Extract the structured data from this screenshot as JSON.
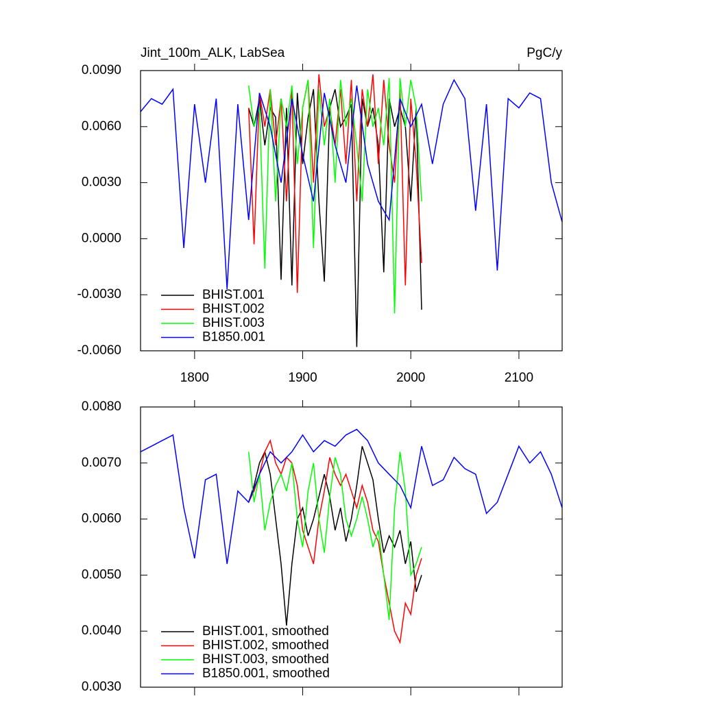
{
  "chart_data": [
    {
      "type": "line",
      "title": "Jint_100m_ALK, LabSea",
      "units": "PgC/y",
      "xlim": [
        1750,
        2140
      ],
      "xticks": [
        1800,
        1900,
        2000,
        2100
      ],
      "ylim": [
        -0.006,
        0.009
      ],
      "yticks": [
        {
          "value": -0.006,
          "label": "-0.0060"
        },
        {
          "value": -0.003,
          "label": "-0.0030"
        },
        {
          "value": 0,
          "label": "0.0000"
        },
        {
          "value": 0.003,
          "label": "0.0030"
        },
        {
          "value": 0.006,
          "label": "0.0060"
        },
        {
          "value": 0.009,
          "label": "0.0090"
        }
      ],
      "legend": "lower left",
      "series": [
        {
          "name": "BHIST.001",
          "color": "#000000",
          "x": [
            1850,
            1855,
            1860,
            1865,
            1870,
            1875,
            1880,
            1885,
            1890,
            1895,
            1900,
            1905,
            1910,
            1915,
            1920,
            1925,
            1930,
            1935,
            1940,
            1945,
            1950,
            1955,
            1960,
            1965,
            1970,
            1975,
            1980,
            1985,
            1990,
            1995,
            2000,
            2005,
            2010
          ],
          "values": [
            0.007,
            0.006,
            0.0075,
            0.005,
            0.007,
            0.0065,
            -0.0022,
            0.007,
            -0.0025,
            0.0078,
            0.004,
            0.0065,
            0.008,
            0.002,
            -0.0023,
            0.007,
            0.008,
            0.006,
            0.0065,
            0.0072,
            -0.0058,
            0.0075,
            0.006,
            0.007,
            0.005,
            -0.0018,
            0.0075,
            0.006,
            0.007,
            0.006,
            0.002,
            0.007,
            -0.0038
          ]
        },
        {
          "name": "BHIST.002",
          "color": "#ff0000",
          "x": [
            1850,
            1855,
            1860,
            1865,
            1870,
            1875,
            1880,
            1885,
            1890,
            1895,
            1900,
            1905,
            1910,
            1915,
            1920,
            1925,
            1930,
            1935,
            1940,
            1945,
            1950,
            1955,
            1960,
            1965,
            1970,
            1975,
            1980,
            1985,
            1990,
            1995,
            2000,
            2005,
            2010
          ],
          "values": [
            0.007,
            -0.0003,
            0.0078,
            0.006,
            0.008,
            0.005,
            0.0075,
            0.002,
            0.008,
            -0.0029,
            0.007,
            0.0085,
            0.003,
            0.0088,
            0.006,
            0.007,
            0.005,
            0.008,
            0.004,
            0.0085,
            0.002,
            0.008,
            0.006,
            0.0088,
            0.004,
            0.0085,
            0.005,
            0.003,
            0.008,
            -0.0025,
            0.0075,
            0.004,
            -0.0013
          ]
        },
        {
          "name": "BHIST.003",
          "color": "#00ff00",
          "x": [
            1850,
            1855,
            1860,
            1865,
            1870,
            1875,
            1880,
            1885,
            1890,
            1895,
            1900,
            1905,
            1910,
            1915,
            1920,
            1925,
            1930,
            1935,
            1940,
            1945,
            1950,
            1955,
            1960,
            1965,
            1970,
            1975,
            1980,
            1985,
            1990,
            1995,
            2000,
            2005,
            2010
          ],
          "values": [
            0.0082,
            0.006,
            0.007,
            -0.0016,
            0.008,
            0.002,
            0.0075,
            0.006,
            0.0082,
            0.004,
            0.007,
            0.0085,
            -0.0005,
            0.008,
            0.005,
            0.0075,
            0.003,
            0.0085,
            0.006,
            0.0075,
            0.005,
            0.002,
            0.008,
            0.006,
            0.007,
            0.005,
            0.0086,
            -0.004,
            0.0086,
            0.006,
            0.0085,
            0.007,
            0.002
          ]
        },
        {
          "name": "B1850.001",
          "color": "#0000ff",
          "x": [
            1750,
            1760,
            1770,
            1780,
            1790,
            1800,
            1810,
            1820,
            1830,
            1840,
            1850,
            1860,
            1870,
            1880,
            1890,
            1900,
            1910,
            1920,
            1930,
            1940,
            1950,
            1960,
            1970,
            1980,
            1990,
            2000,
            2010,
            2020,
            2030,
            2040,
            2050,
            2060,
            2070,
            2080,
            2090,
            2100,
            2110,
            2120,
            2130,
            2140
          ],
          "values": [
            0.0068,
            0.0075,
            0.0072,
            0.008,
            -0.0005,
            0.0072,
            0.003,
            0.0075,
            -0.0027,
            0.0072,
            0.001,
            0.0078,
            0.006,
            0.003,
            0.0075,
            0.0045,
            0.002,
            0.0078,
            0.005,
            0.003,
            0.0082,
            0.004,
            0.002,
            0.001,
            0.0075,
            0.006,
            0.0072,
            0.004,
            0.0072,
            0.0085,
            0.0075,
            0.0015,
            0.0072,
            -0.0017,
            0.0075,
            0.007,
            0.0078,
            0.0075,
            0.003,
            0.0009
          ]
        }
      ]
    },
    {
      "type": "line",
      "xlim": [
        1750,
        2140
      ],
      "xticks": [
        1800,
        1900,
        2000,
        2100
      ],
      "ylim": [
        0.003,
        0.008
      ],
      "yticks": [
        {
          "value": 0.003,
          "label": "0.0030"
        },
        {
          "value": 0.004,
          "label": "0.0040"
        },
        {
          "value": 0.005,
          "label": "0.0050"
        },
        {
          "value": 0.006,
          "label": "0.0060"
        },
        {
          "value": 0.007,
          "label": "0.0070"
        },
        {
          "value": 0.008,
          "label": "0.0080"
        }
      ],
      "legend": "lower left",
      "series": [
        {
          "name": "BHIST.001, smoothed",
          "color": "#000000",
          "x": [
            1850,
            1855,
            1860,
            1865,
            1870,
            1875,
            1880,
            1885,
            1890,
            1895,
            1900,
            1905,
            1910,
            1915,
            1920,
            1925,
            1930,
            1935,
            1940,
            1945,
            1950,
            1955,
            1960,
            1965,
            1970,
            1975,
            1980,
            1985,
            1990,
            1995,
            2000,
            2005,
            2010
          ],
          "values": [
            0.0063,
            0.0066,
            0.007,
            0.0072,
            0.0068,
            0.006,
            0.0052,
            0.0041,
            0.0052,
            0.006,
            0.0062,
            0.0057,
            0.006,
            0.0064,
            0.0068,
            0.0064,
            0.0058,
            0.0062,
            0.0056,
            0.006,
            0.0066,
            0.0073,
            0.007,
            0.0067,
            0.006,
            0.0054,
            0.0057,
            0.0055,
            0.0058,
            0.0052,
            0.0056,
            0.0047,
            0.005
          ]
        },
        {
          "name": "BHIST.002, smoothed",
          "color": "#ff0000",
          "x": [
            1850,
            1855,
            1860,
            1865,
            1870,
            1875,
            1880,
            1885,
            1890,
            1895,
            1900,
            1905,
            1910,
            1915,
            1920,
            1925,
            1930,
            1935,
            1940,
            1945,
            1950,
            1955,
            1960,
            1965,
            1970,
            1975,
            1980,
            1985,
            1990,
            1995,
            2000,
            2005,
            2010
          ],
          "values": [
            0.0063,
            0.0065,
            0.0068,
            0.0072,
            0.0074,
            0.007,
            0.0068,
            0.0071,
            0.007,
            0.0066,
            0.0058,
            0.0055,
            0.0052,
            0.006,
            0.0065,
            0.0071,
            0.0068,
            0.0066,
            0.0068,
            0.0065,
            0.0062,
            0.0066,
            0.0063,
            0.0058,
            0.0056,
            0.005,
            0.0045,
            0.004,
            0.0038,
            0.0045,
            0.0043,
            0.005,
            0.0053
          ]
        },
        {
          "name": "BHIST.003, smoothed",
          "color": "#00ff00",
          "x": [
            1850,
            1855,
            1860,
            1865,
            1870,
            1875,
            1880,
            1885,
            1890,
            1895,
            1900,
            1905,
            1910,
            1915,
            1920,
            1925,
            1930,
            1935,
            1940,
            1945,
            1950,
            1955,
            1960,
            1965,
            1970,
            1975,
            1980,
            1985,
            1990,
            1995,
            2000,
            2005,
            2010
          ],
          "values": [
            0.0072,
            0.0063,
            0.0068,
            0.0058,
            0.0063,
            0.0066,
            0.0068,
            0.0065,
            0.007,
            0.006,
            0.0055,
            0.0065,
            0.007,
            0.006,
            0.0054,
            0.0064,
            0.0071,
            0.0068,
            0.006,
            0.0057,
            0.006,
            0.0064,
            0.006,
            0.0055,
            0.0058,
            0.005,
            0.0042,
            0.0062,
            0.0072,
            0.0065,
            0.005,
            0.0052,
            0.0055
          ]
        },
        {
          "name": "B1850.001, smoothed",
          "color": "#0000ff",
          "x": [
            1750,
            1760,
            1770,
            1780,
            1790,
            1800,
            1810,
            1820,
            1830,
            1840,
            1850,
            1860,
            1870,
            1880,
            1890,
            1900,
            1910,
            1920,
            1930,
            1940,
            1950,
            1960,
            1970,
            1980,
            1990,
            2000,
            2010,
            2020,
            2030,
            2040,
            2050,
            2060,
            2070,
            2080,
            2090,
            2100,
            2110,
            2120,
            2130,
            2140
          ],
          "values": [
            0.0072,
            0.0073,
            0.0074,
            0.0075,
            0.0062,
            0.0053,
            0.0067,
            0.0068,
            0.0052,
            0.0065,
            0.0063,
            0.0068,
            0.0072,
            0.007,
            0.0072,
            0.0075,
            0.0072,
            0.0074,
            0.0073,
            0.0075,
            0.0076,
            0.0074,
            0.007,
            0.0068,
            0.0066,
            0.0062,
            0.0073,
            0.0066,
            0.0067,
            0.0071,
            0.0069,
            0.0068,
            0.0061,
            0.0063,
            0.0068,
            0.0073,
            0.007,
            0.0072,
            0.0068,
            0.0062
          ]
        }
      ]
    }
  ]
}
